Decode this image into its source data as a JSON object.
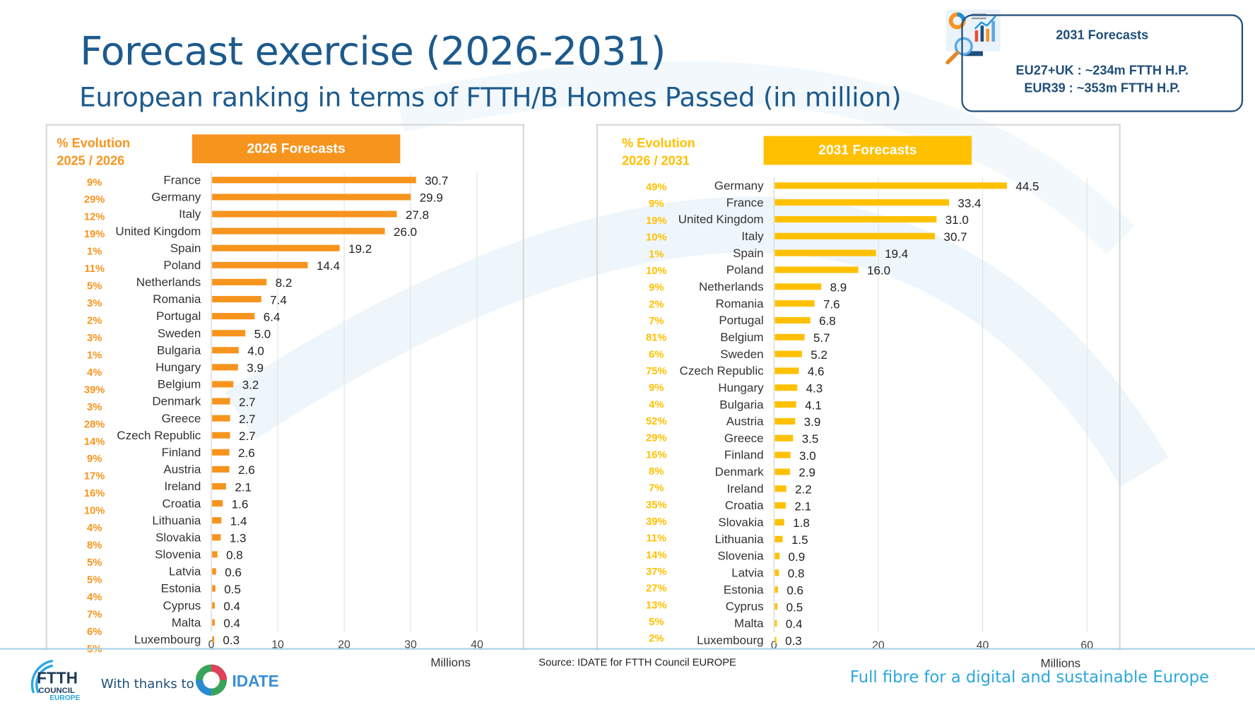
{
  "header": {
    "title": "Forecast exercise (2026-2031)",
    "subtitle": "European ranking in terms of FTTH/B Homes Passed (in million)"
  },
  "infobox": {
    "icon": "analytics-monitor-icon",
    "title": "2031 Forecasts",
    "line1": "EU27+UK : ~234m FTTH H.P.",
    "line2": "EUR39 : ~353m FTTH H.P."
  },
  "footer": {
    "thanks": "With thanks to",
    "idate": "IDATE",
    "ftth_logo": "FTTH COUNCIL EUROPE",
    "source": "Source: IDATE for FTTH Council EUROPE",
    "tagline": "Full fibre for a digital and sustainable Europe"
  },
  "colors": {
    "orange": "#f7941d",
    "yellow": "#ffc000",
    "title_blue": "#1d5a8c",
    "tagline_blue": "#2aa7dd"
  },
  "chart_data": [
    {
      "type": "bar",
      "orientation": "horizontal",
      "title": "2026 Forecasts",
      "evolution_header": [
        "% Evolution",
        "2025 / 2026"
      ],
      "xlabel": "Millions",
      "xlim": [
        0,
        40
      ],
      "xticks": [
        0,
        10,
        20,
        30,
        40
      ],
      "grid": true,
      "color": "#f7941d",
      "categories": [
        "France",
        "Germany",
        "Italy",
        "United Kingdom",
        "Spain",
        "Poland",
        "Netherlands",
        "Romania",
        "Portugal",
        "Sweden",
        "Bulgaria",
        "Hungary",
        "Belgium",
        "Denmark",
        "Greece",
        "Czech Republic",
        "Finland",
        "Austria",
        "Ireland",
        "Croatia",
        "Lithuania",
        "Slovakia",
        "Slovenia",
        "Latvia",
        "Estonia",
        "Cyprus",
        "Malta",
        "Luxembourg"
      ],
      "values": [
        30.7,
        29.9,
        27.8,
        26.0,
        19.2,
        14.4,
        8.2,
        7.4,
        6.4,
        5.0,
        4.0,
        3.9,
        3.2,
        2.7,
        2.7,
        2.7,
        2.6,
        2.6,
        2.1,
        1.6,
        1.4,
        1.3,
        0.8,
        0.6,
        0.5,
        0.4,
        0.4,
        0.3
      ],
      "value_labels": [
        "30.7",
        "29.9",
        "27.8",
        "26.0",
        "19.2",
        "14.4",
        "8.2",
        "7.4",
        "6.4",
        "5.0",
        "4.0",
        "3.9",
        "3.2",
        "2.7",
        "2.7",
        "2.7",
        "2.6",
        "2.6",
        "2.1",
        "1.6",
        "1.4",
        "1.3",
        "0.8",
        "0.6",
        "0.5",
        "0.4",
        "0.4",
        "0.3"
      ],
      "evolution": [
        "9%",
        "29%",
        "12%",
        "19%",
        "1%",
        "11%",
        "5%",
        "3%",
        "2%",
        "3%",
        "1%",
        "4%",
        "39%",
        "3%",
        "28%",
        "14%",
        "9%",
        "17%",
        "16%",
        "10%",
        "4%",
        "8%",
        "5%",
        "5%",
        "4%",
        "7%",
        "6%",
        "5%"
      ]
    },
    {
      "type": "bar",
      "orientation": "horizontal",
      "title": "2031 Forecasts",
      "evolution_header": [
        "% Evolution",
        "2026 / 2031"
      ],
      "xlabel": "Millions",
      "xlim": [
        0,
        60
      ],
      "xticks": [
        0,
        20,
        40,
        60
      ],
      "grid": true,
      "color": "#ffc000",
      "categories": [
        "Germany",
        "France",
        "United Kingdom",
        "Italy",
        "Spain",
        "Poland",
        "Netherlands",
        "Romania",
        "Portugal",
        "Belgium",
        "Sweden",
        "Czech Republic",
        "Hungary",
        "Bulgaria",
        "Austria",
        "Greece",
        "Finland",
        "Denmark",
        "Ireland",
        "Croatia",
        "Slovakia",
        "Lithuania",
        "Slovenia",
        "Latvia",
        "Estonia",
        "Cyprus",
        "Malta",
        "Luxembourg"
      ],
      "values": [
        44.5,
        33.4,
        31.0,
        30.7,
        19.4,
        16.0,
        8.9,
        7.6,
        6.8,
        5.7,
        5.2,
        4.6,
        4.3,
        4.1,
        3.9,
        3.5,
        3.0,
        2.9,
        2.2,
        2.1,
        1.8,
        1.5,
        0.9,
        0.8,
        0.6,
        0.5,
        0.4,
        0.3
      ],
      "value_labels": [
        "44.5",
        "33.4",
        "31.0",
        "30.7",
        "19.4",
        "16.0",
        "8.9",
        "7.6",
        "6.8",
        "5.7",
        "5.2",
        "4.6",
        "4.3",
        "4.1",
        "3.9",
        "3.5",
        "3.0",
        "2.9",
        "2.2",
        "2.1",
        "1.8",
        "1.5",
        "0.9",
        "0.8",
        "0.6",
        "0.5",
        "0.4",
        "0.3"
      ],
      "evolution": [
        "49%",
        "9%",
        "19%",
        "10%",
        "1%",
        "10%",
        "9%",
        "2%",
        "7%",
        "81%",
        "6%",
        "75%",
        "9%",
        "4%",
        "52%",
        "29%",
        "16%",
        "8%",
        "7%",
        "35%",
        "39%",
        "11%",
        "14%",
        "37%",
        "27%",
        "13%",
        "5%",
        "2%"
      ]
    }
  ]
}
